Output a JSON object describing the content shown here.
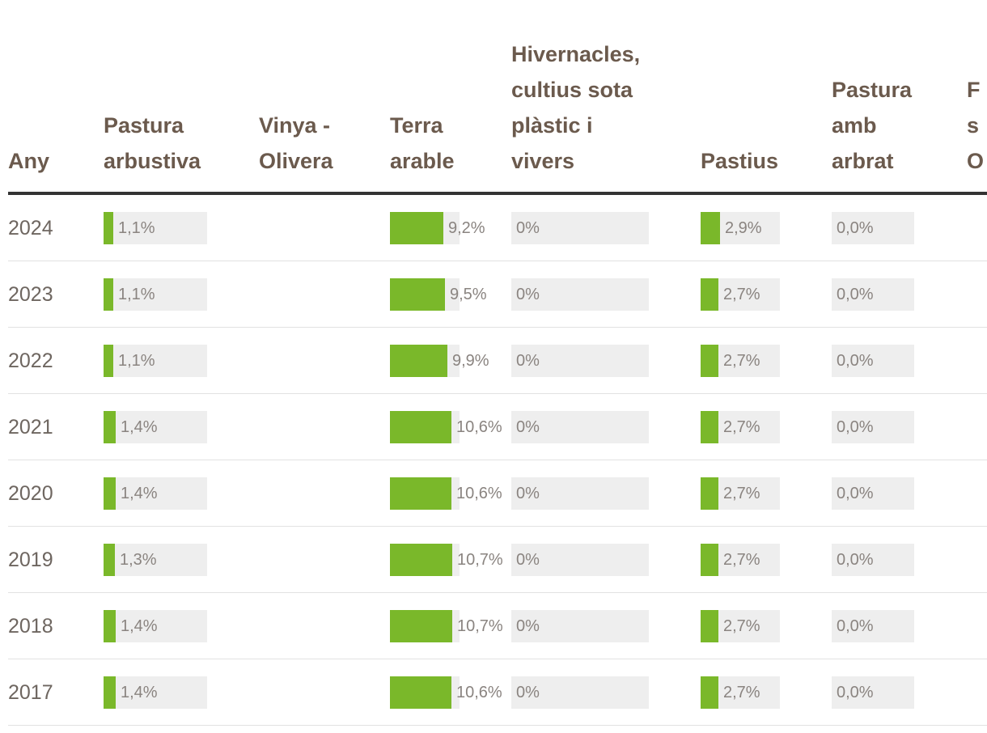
{
  "colors": {
    "header_text": "#6b5a4d",
    "bar_fill": "#7ab82a",
    "bar_track": "#eeeeee",
    "value_text": "#8a8480",
    "year_text": "#6e6660",
    "header_rule": "#333333",
    "row_divider": "#e2e2e2"
  },
  "table": {
    "columns": [
      {
        "key": "any",
        "label": "Any"
      },
      {
        "key": "pastura_arbustiva",
        "label": "Pastura\narbustiva"
      },
      {
        "key": "vinya_olivera",
        "label": "Vinya -\nOlivera"
      },
      {
        "key": "terra_arable",
        "label": "Terra\narable"
      },
      {
        "key": "hivernacles",
        "label": "Hivernacles,\ncultius sota\nplàstic i\nvivers"
      },
      {
        "key": "pastius",
        "label": "Pastius"
      },
      {
        "key": "pastura_arbrat",
        "label": "Pastura\namb\narbrat"
      },
      {
        "key": "cut_off",
        "label": "F\ns\nO"
      }
    ],
    "rows": [
      {
        "year": "2024",
        "pastura_arbustiva": "1,1%",
        "terra_arable": "9,2%",
        "hivernacles": "0%",
        "pastius": "2,9%",
        "pastura_arbrat": "0,0%"
      },
      {
        "year": "2023",
        "pastura_arbustiva": "1,1%",
        "terra_arable": "9,5%",
        "hivernacles": "0%",
        "pastius": "2,7%",
        "pastura_arbrat": "0,0%"
      },
      {
        "year": "2022",
        "pastura_arbustiva": "1,1%",
        "terra_arable": "9,9%",
        "hivernacles": "0%",
        "pastius": "2,7%",
        "pastura_arbrat": "0,0%"
      },
      {
        "year": "2021",
        "pastura_arbustiva": "1,4%",
        "terra_arable": "10,6%",
        "hivernacles": "0%",
        "pastius": "2,7%",
        "pastura_arbrat": "0,0%"
      },
      {
        "year": "2020",
        "pastura_arbustiva": "1,4%",
        "terra_arable": "10,6%",
        "hivernacles": "0%",
        "pastius": "2,7%",
        "pastura_arbrat": "0,0%"
      },
      {
        "year": "2019",
        "pastura_arbustiva": "1,3%",
        "terra_arable": "10,7%",
        "hivernacles": "0%",
        "pastius": "2,7%",
        "pastura_arbrat": "0,0%"
      },
      {
        "year": "2018",
        "pastura_arbustiva": "1,4%",
        "terra_arable": "10,7%",
        "hivernacles": "0%",
        "pastius": "2,7%",
        "pastura_arbrat": "0,0%"
      },
      {
        "year": "2017",
        "pastura_arbustiva": "1,4%",
        "terra_arable": "10,6%",
        "hivernacles": "0%",
        "pastius": "2,7%",
        "pastura_arbrat": "0,0%"
      }
    ]
  }
}
